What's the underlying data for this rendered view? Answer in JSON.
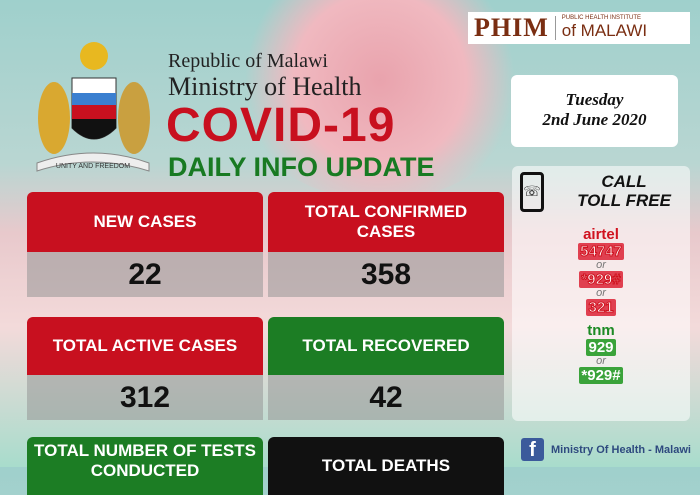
{
  "header": {
    "republic": "Republic of Malawi",
    "ministry": "Ministry of Health",
    "title": "COVID-19",
    "subtitle": "DAILY INFO UPDATE",
    "crest_motto": "UNITY AND FREEDOM"
  },
  "logo": {
    "brand": "PHIM",
    "line1": "PUBLIC HEALTH INSTITUTE",
    "line2": "of MALAWI"
  },
  "date": {
    "day": "Tuesday",
    "date": "2nd June 2020"
  },
  "stats": [
    {
      "label": "NEW CASES",
      "value": "22",
      "color": "#c8101f"
    },
    {
      "label": "TOTAL CONFIRMED CASES",
      "value": "358",
      "color": "#c8101f"
    },
    {
      "label": "TOTAL ACTIVE CASES",
      "value": "312",
      "color": "#c8101f"
    },
    {
      "label": "TOTAL RECOVERED",
      "value": "42",
      "color": "#1c7d24"
    },
    {
      "label": "TOTAL NUMBER OF TESTS CONDUCTED",
      "color": "#1c7d24"
    },
    {
      "label": "TOTAL DEATHS",
      "color": "#111111"
    }
  ],
  "tollfree": {
    "title_line1": "CALL",
    "title_line2": "TOLL FREE",
    "icon": "phone-icon",
    "airtel": {
      "name": "airtel",
      "numbers": [
        "54747",
        "*929#",
        "321"
      ]
    },
    "tnm": {
      "name": "tnm",
      "numbers": [
        "929",
        "*929#"
      ]
    },
    "or": "or"
  },
  "social": {
    "icon": "facebook-icon",
    "label": "Ministry Of Health - Malawi"
  }
}
